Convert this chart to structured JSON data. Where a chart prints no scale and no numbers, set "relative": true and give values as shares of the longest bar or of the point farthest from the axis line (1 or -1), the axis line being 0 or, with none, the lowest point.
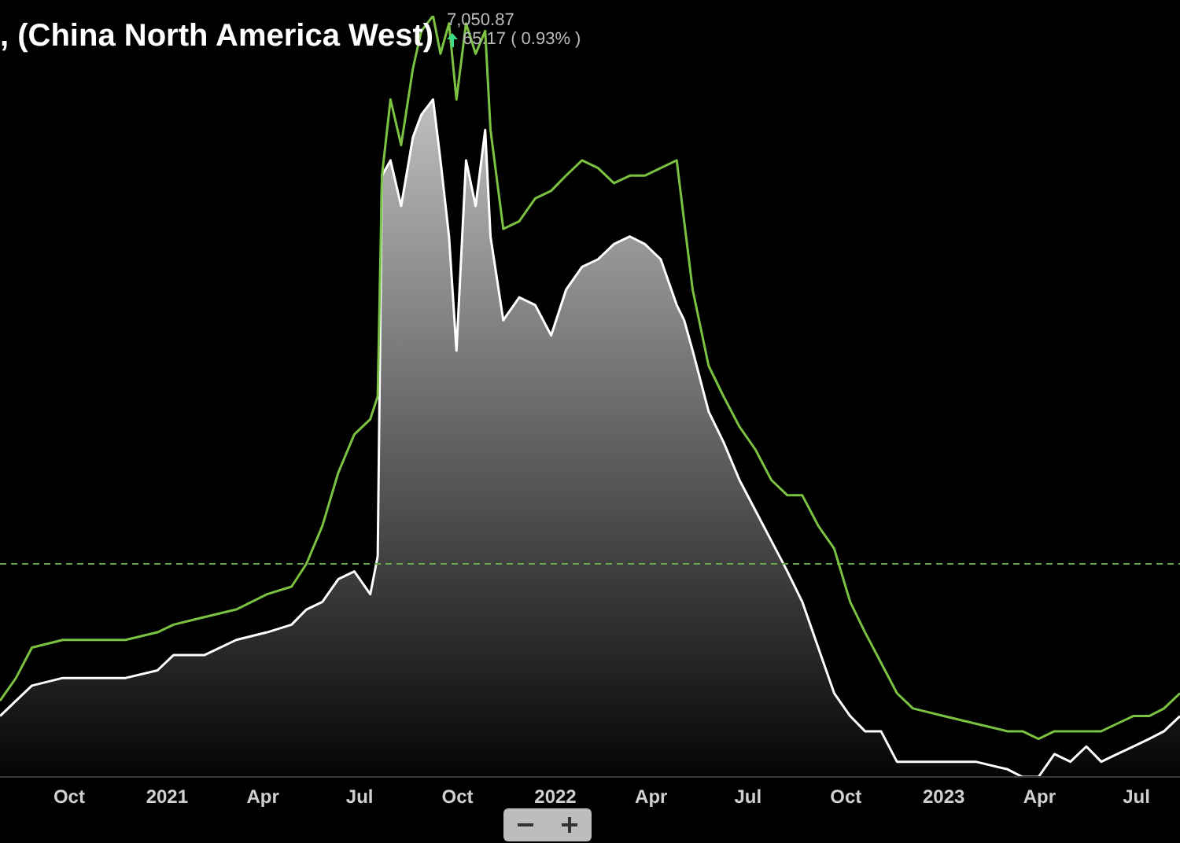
{
  "chart_data": {
    "type": "line",
    "title": ", (China North America West)",
    "annotations": [
      "7,050.87",
      "65.17 ( 0.93% )"
    ],
    "relative": true,
    "x": [
      "2020-07-28",
      "2020-08-12",
      "2020-08-27",
      "2020-09-25",
      "2020-10-25",
      "2020-11-23",
      "2020-12-23",
      "2021-01-07",
      "2021-02-05",
      "2021-03-07",
      "2021-04-05",
      "2021-04-28",
      "2021-05-12",
      "2021-05-27",
      "2021-06-11",
      "2021-06-26",
      "2021-07-11",
      "2021-07-18",
      "2021-07-22",
      "2021-07-30",
      "2021-08-09",
      "2021-08-20",
      "2021-08-28",
      "2021-09-08",
      "2021-09-15",
      "2021-09-23",
      "2021-09-30",
      "2021-10-09",
      "2021-10-18",
      "2021-10-27",
      "2021-11-01",
      "2021-11-13",
      "2021-11-28",
      "2021-12-13",
      "2021-12-28",
      "2022-01-11",
      "2022-01-26",
      "2022-02-10",
      "2022-02-25",
      "2022-03-12",
      "2022-03-26",
      "2022-04-10",
      "2022-04-25",
      "2022-05-02",
      "2022-05-10",
      "2022-05-25",
      "2022-06-08",
      "2022-06-23",
      "2022-07-08",
      "2022-07-23",
      "2022-08-07",
      "2022-08-21",
      "2022-09-05",
      "2022-09-20",
      "2022-10-05",
      "2022-10-19",
      "2022-11-03",
      "2022-11-18",
      "2022-12-03",
      "2023-01-01",
      "2023-01-31",
      "2023-03-02",
      "2023-03-16",
      "2023-03-31",
      "2023-04-15",
      "2023-04-30",
      "2023-05-15",
      "2023-05-29",
      "2023-06-13",
      "2023-06-28",
      "2023-07-13",
      "2023-07-27",
      "2023-08-11"
    ],
    "series": [
      {
        "type": "area",
        "color": "#ffffff",
        "values": [
          0.08,
          0.1,
          0.12,
          0.13,
          0.13,
          0.13,
          0.14,
          0.16,
          0.16,
          0.18,
          0.19,
          0.2,
          0.22,
          0.23,
          0.26,
          0.27,
          0.24,
          0.29,
          0.79,
          0.81,
          0.75,
          0.84,
          0.87,
          0.89,
          0.81,
          0.71,
          0.56,
          0.81,
          0.75,
          0.85,
          0.71,
          0.6,
          0.63,
          0.62,
          0.58,
          0.64,
          0.67,
          0.68,
          0.7,
          0.71,
          0.7,
          0.68,
          0.62,
          0.6,
          0.56,
          0.48,
          0.44,
          0.39,
          0.35,
          0.31,
          0.27,
          0.23,
          0.17,
          0.11,
          0.08,
          0.06,
          0.06,
          0.02,
          0.02,
          0.02,
          0.02,
          0.01,
          0.0,
          0.0,
          0.03,
          0.02,
          0.04,
          0.02,
          0.03,
          0.04,
          0.05,
          0.06,
          0.08
        ]
      },
      {
        "type": "line",
        "color": "#7cc242",
        "values": [
          0.1,
          0.13,
          0.17,
          0.18,
          0.18,
          0.18,
          0.19,
          0.2,
          0.21,
          0.22,
          0.24,
          0.25,
          0.28,
          0.33,
          0.4,
          0.45,
          0.47,
          0.5,
          0.79,
          0.89,
          0.83,
          0.93,
          0.98,
          1.0,
          0.95,
          0.99,
          0.89,
          0.99,
          0.95,
          0.98,
          0.85,
          0.72,
          0.73,
          0.76,
          0.77,
          0.79,
          0.81,
          0.8,
          0.78,
          0.79,
          0.79,
          0.8,
          0.81,
          0.73,
          0.64,
          0.54,
          0.5,
          0.46,
          0.43,
          0.39,
          0.37,
          0.37,
          0.33,
          0.3,
          0.23,
          0.19,
          0.15,
          0.11,
          0.09,
          0.08,
          0.07,
          0.06,
          0.06,
          0.05,
          0.06,
          0.06,
          0.06,
          0.06,
          0.07,
          0.08,
          0.08,
          0.09,
          0.11
        ]
      }
    ],
    "xlim": [
      "2020-07-28",
      "2023-08-11"
    ],
    "xticks": [
      {
        "value": "2020-10-01",
        "label": "Oct"
      },
      {
        "value": "2021-01-01",
        "label": "2021"
      },
      {
        "value": "2021-04-01",
        "label": "Apr"
      },
      {
        "value": "2021-07-01",
        "label": "Jul"
      },
      {
        "value": "2021-10-01",
        "label": "Oct"
      },
      {
        "value": "2022-01-01",
        "label": "2022"
      },
      {
        "value": "2022-04-01",
        "label": "Apr"
      },
      {
        "value": "2022-07-01",
        "label": "Jul"
      },
      {
        "value": "2022-10-01",
        "label": "Oct"
      },
      {
        "value": "2023-01-01",
        "label": "2023"
      },
      {
        "value": "2023-04-01",
        "label": "Apr"
      },
      {
        "value": "2023-07-01",
        "label": "Jul"
      }
    ],
    "ref_lines": [
      {
        "axis": "y",
        "value": 0.28,
        "color": "#6aa84f",
        "line_style": "dashed"
      }
    ]
  }
}
